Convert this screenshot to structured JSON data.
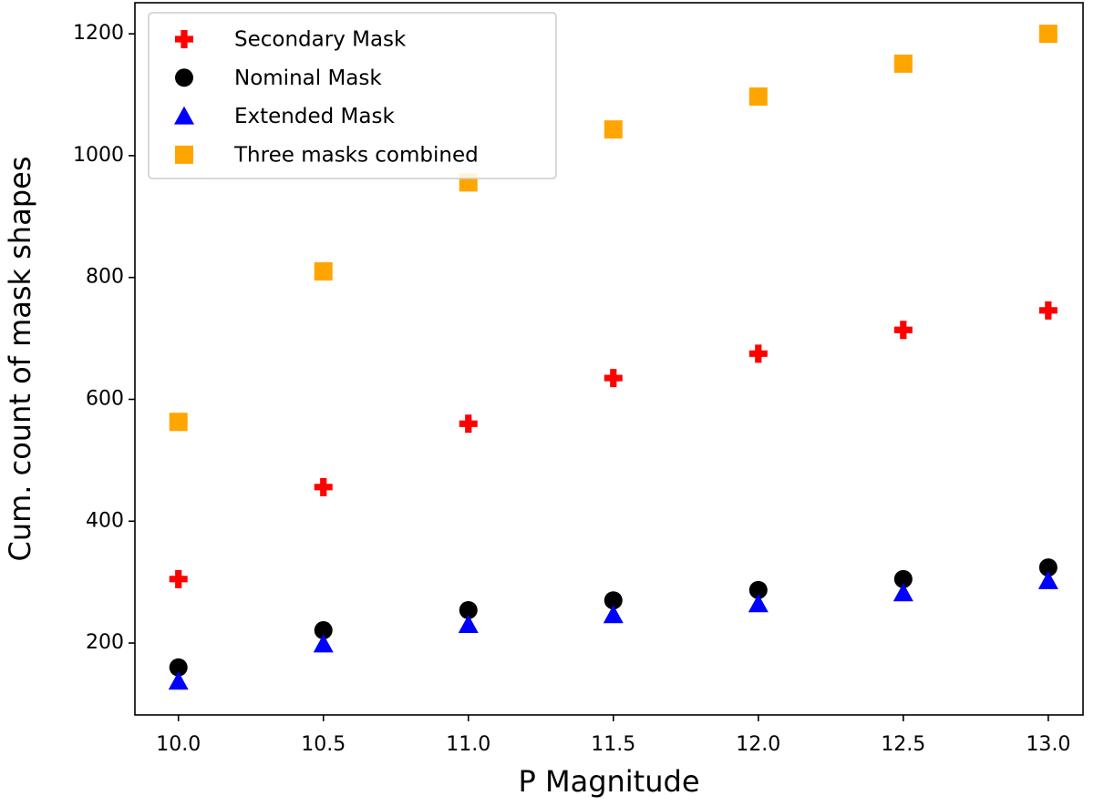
{
  "chart_data": {
    "type": "scatter",
    "x_label": "P Magnitude",
    "y_label": "Cum. count of mask shapes",
    "x": [
      10.0,
      10.5,
      11.0,
      11.5,
      12.0,
      12.5,
      13.0
    ],
    "series": [
      {
        "name": "Secondary Mask",
        "color": "#ff0000",
        "marker": "plus",
        "values": [
          305,
          456,
          560,
          635,
          675,
          714,
          746
        ]
      },
      {
        "name": "Nominal Mask",
        "color": "#000000",
        "marker": "circle",
        "values": [
          160,
          221,
          254,
          270,
          287,
          305,
          324
        ]
      },
      {
        "name": "Extended Mask",
        "color": "#0000ff",
        "marker": "triangle",
        "values": [
          137,
          198,
          230,
          246,
          264,
          282,
          302
        ]
      },
      {
        "name": "Three masks combined",
        "color": "#ffa500",
        "marker": "square",
        "values": [
          563,
          810,
          956,
          1043,
          1097,
          1151,
          1200
        ]
      }
    ],
    "xlim": [
      9.85,
      13.12
    ],
    "ylim": [
      82,
      1251
    ],
    "xticks": [
      {
        "value": 10.0,
        "label": "10.0"
      },
      {
        "value": 10.5,
        "label": "10.5"
      },
      {
        "value": 11.0,
        "label": "11.0"
      },
      {
        "value": 11.5,
        "label": "11.5"
      },
      {
        "value": 12.0,
        "label": "12.0"
      },
      {
        "value": 12.5,
        "label": "12.5"
      },
      {
        "value": 13.0,
        "label": "13.0"
      }
    ],
    "yticks": [
      200,
      400,
      600,
      800,
      1000,
      1200
    ],
    "legend": "upper left",
    "grid": false
  }
}
